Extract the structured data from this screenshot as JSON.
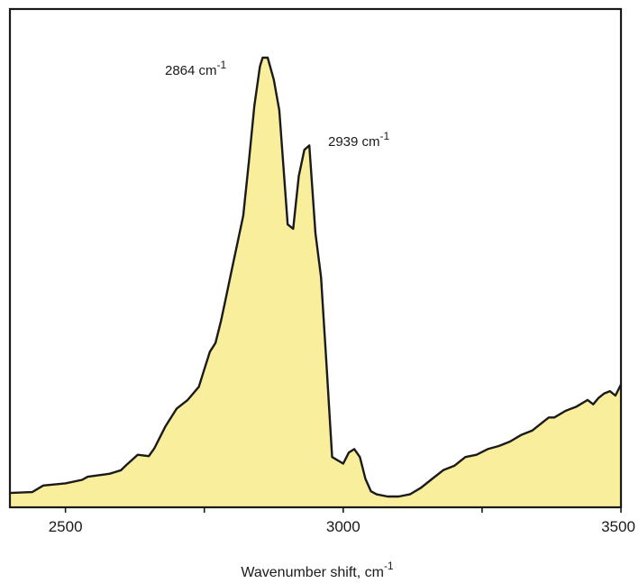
{
  "chart_data": {
    "type": "area",
    "title": "",
    "xlabel": "Wavenumber shift, cm",
    "xlabel_superscript": "-1",
    "ylabel": "",
    "xlim": [
      2400,
      3500
    ],
    "ylim": [
      0,
      1.0
    ],
    "y_ticks_shown": false,
    "grid": false,
    "x_ticks": [
      2500,
      3000,
      3500
    ],
    "x_minor_ticks": [
      2750,
      3250
    ],
    "fill_color": "#f8ee9c",
    "line_color": "#1a1a1a",
    "annotations": [
      {
        "text": "2864 cm",
        "sup": "-1",
        "x": 2864
      },
      {
        "text": "2939 cm",
        "sup": "-1",
        "x": 2939
      }
    ],
    "series": [
      {
        "x": [
          2400,
          2440,
          2460,
          2500,
          2530,
          2540,
          2570,
          2580,
          2600,
          2610,
          2630,
          2650,
          2660,
          2680,
          2700,
          2710,
          2720,
          2740,
          2750,
          2760,
          2770,
          2780,
          2790,
          2800,
          2820,
          2830,
          2840,
          2850,
          2855,
          2864,
          2875,
          2885,
          2900,
          2910,
          2920,
          2930,
          2939,
          2950,
          2960,
          2970,
          2980,
          3000,
          3010,
          3020,
          3030,
          3040,
          3050,
          3060,
          3080,
          3100,
          3120,
          3140,
          3160,
          3180,
          3200,
          3220,
          3240,
          3260,
          3280,
          3300,
          3320,
          3340,
          3360,
          3370,
          3380,
          3400,
          3420,
          3440,
          3450,
          3460,
          3470,
          3480,
          3490,
          3500
        ],
        "y": [
          0.008,
          0.01,
          0.025,
          0.03,
          0.038,
          0.045,
          0.05,
          0.052,
          0.06,
          0.072,
          0.095,
          0.092,
          0.11,
          0.16,
          0.2,
          0.21,
          0.22,
          0.25,
          0.29,
          0.33,
          0.35,
          0.4,
          0.46,
          0.52,
          0.64,
          0.76,
          0.89,
          0.98,
          1.0,
          1.0,
          0.95,
          0.88,
          0.62,
          0.61,
          0.73,
          0.79,
          0.8,
          0.6,
          0.5,
          0.3,
          0.09,
          0.075,
          0.1,
          0.108,
          0.09,
          0.04,
          0.012,
          0.005,
          0.0,
          0.0,
          0.005,
          0.02,
          0.04,
          0.06,
          0.07,
          0.09,
          0.095,
          0.108,
          0.115,
          0.125,
          0.14,
          0.15,
          0.17,
          0.18,
          0.18,
          0.195,
          0.205,
          0.22,
          0.21,
          0.225,
          0.235,
          0.24,
          0.23,
          0.255
        ]
      }
    ]
  }
}
